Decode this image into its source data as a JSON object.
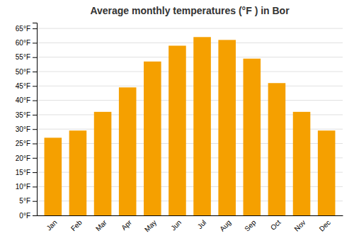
{
  "chart_data": {
    "type": "bar",
    "title": "Average monthly temperatures (°F ) in Bor",
    "categories": [
      "Jan",
      "Feb",
      "Mar",
      "Apr",
      "May",
      "Jun",
      "Jul",
      "Aug",
      "Sep",
      "Oct",
      "Nov",
      "Dec"
    ],
    "values": [
      27,
      29.5,
      36,
      44.5,
      53.5,
      59,
      62,
      61,
      54.5,
      46,
      36,
      29.5
    ],
    "color": "#F5A000",
    "ylim": [
      0,
      67
    ],
    "yticks": [
      {
        "value": 0,
        "label": "0°F"
      },
      {
        "value": 5,
        "label": "5°F"
      },
      {
        "value": 10,
        "label": "10°F"
      },
      {
        "value": 15,
        "label": "15°F"
      },
      {
        "value": 20,
        "label": "20°F"
      },
      {
        "value": 25,
        "label": "25°F"
      },
      {
        "value": 30,
        "label": "30°F"
      },
      {
        "value": 35,
        "label": "35°F"
      },
      {
        "value": 40,
        "label": "40°F"
      },
      {
        "value": 45,
        "label": "45°F"
      },
      {
        "value": 50,
        "label": "50°F"
      },
      {
        "value": 55,
        "label": "55°F"
      },
      {
        "value": 60,
        "label": "60°F"
      },
      {
        "value": 65,
        "label": "65°F"
      }
    ],
    "grid": true
  }
}
